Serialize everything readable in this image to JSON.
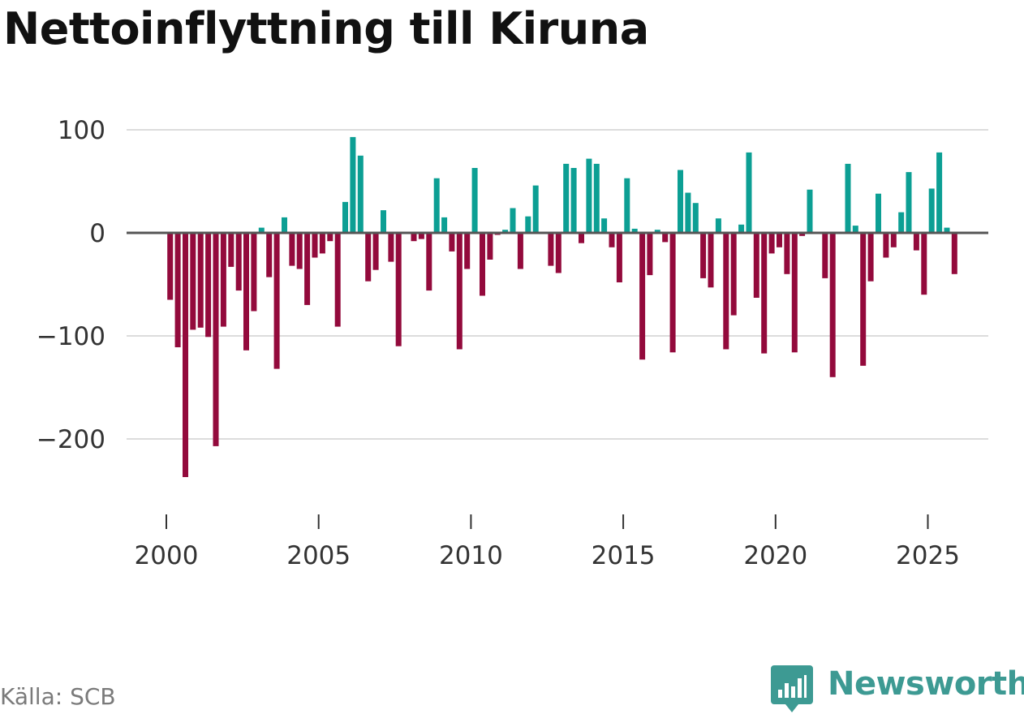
{
  "title": "Nettoinflyttning till Kiruna",
  "source": "Källa: SCB",
  "brand": "Newsworthy",
  "colors": {
    "positive": "#0c9f94",
    "negative": "#930a3c",
    "grid": "#dcdcdc",
    "zero_line": "#555555",
    "brand": "#3d9a93"
  },
  "chart_data": {
    "type": "bar",
    "title": "Nettoinflyttning till Kiruna",
    "xlabel": "",
    "ylabel": "",
    "x_ticks": [
      "2000",
      "2005",
      "2010",
      "2015",
      "2020",
      "2025"
    ],
    "y_ticks": [
      100,
      0,
      -100,
      -200
    ],
    "ylim": [
      -265,
      115
    ],
    "grid": true,
    "x_start_year": 2000,
    "periods_per_year": 4,
    "values": [
      -65,
      -111,
      -237,
      -94,
      -92,
      -101,
      -207,
      -91,
      -33,
      -56,
      -114,
      -76,
      5,
      -43,
      -132,
      15,
      -32,
      -35,
      -70,
      -24,
      -20,
      -8,
      -91,
      30,
      93,
      75,
      -47,
      -36,
      22,
      -28,
      -110,
      0,
      -8,
      -6,
      -56,
      53,
      15,
      -18,
      -113,
      -35,
      63,
      -61,
      -26,
      -2,
      3,
      24,
      -35,
      16,
      46,
      0,
      -32,
      -39,
      67,
      63,
      -10,
      72,
      67,
      14,
      -14,
      -48,
      53,
      4,
      -123,
      -41,
      3,
      -9,
      -116,
      61,
      39,
      29,
      -44,
      -53,
      14,
      -113,
      -80,
      8,
      78,
      -63,
      -117,
      -20,
      -14,
      -40,
      -116,
      -3,
      42,
      0,
      -44,
      -140,
      0,
      67,
      7,
      -129,
      -47,
      38,
      -24,
      -14,
      20,
      59,
      -17,
      -60,
      43,
      78,
      5,
      -40
    ]
  }
}
